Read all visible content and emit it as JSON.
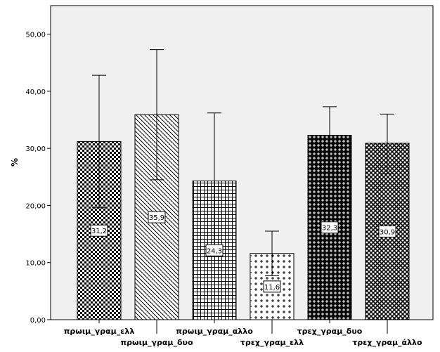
{
  "chart_data": {
    "type": "bar",
    "title": "",
    "xlabel": "",
    "ylabel": "%",
    "ylim": [
      0,
      55
    ],
    "yticks": [
      0,
      10,
      20,
      30,
      40,
      50
    ],
    "ytick_labels": [
      "0,00",
      "10,00",
      "20,00",
      "30,00",
      "40,00",
      "50,00"
    ],
    "grid": false,
    "plot_background": "#f0f0f0",
    "categories": [
      "πρωιμ_γραμ_ελλ",
      "πρωιμ_γραμ_δυο",
      "πρωιμ_γραμ_αλλο",
      "τρεχ_γραμ_ελλ",
      "τρεχ_γραμ_δυο",
      "τρεχ_γραμ_άλλο"
    ],
    "values": [
      31.2,
      35.9,
      24.3,
      11.6,
      32.3,
      30.9
    ],
    "data_labels": [
      "31,2",
      "35,9",
      "24,3",
      "11,6",
      "32,3",
      "30,9"
    ],
    "error_low": [
      19.6,
      24.5,
      12.4,
      7.7,
      27.3,
      25.6
    ],
    "error_high": [
      42.8,
      47.3,
      36.2,
      15.5,
      37.3,
      36.0
    ],
    "patterns": [
      "checker",
      "diagonal",
      "grid",
      "cross",
      "dense-cross",
      "diamond"
    ]
  }
}
